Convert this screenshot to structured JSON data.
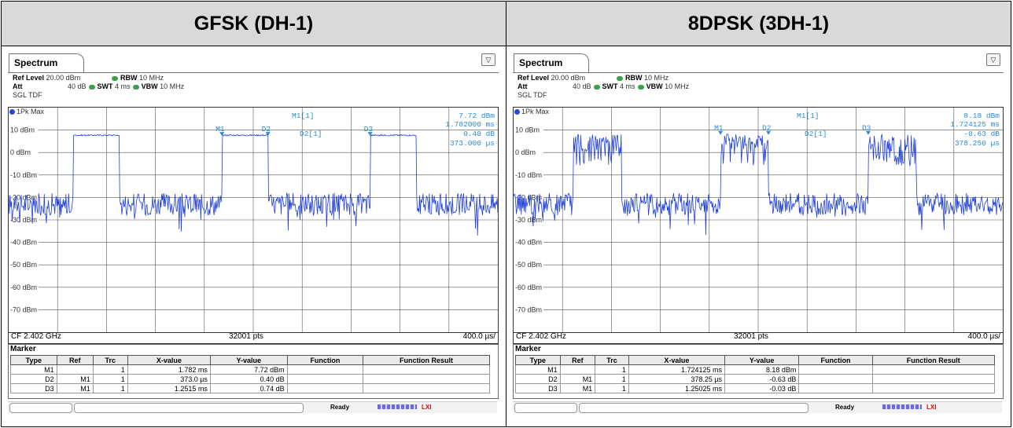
{
  "panels": [
    {
      "id": "gfsk",
      "title": "GFSK (DH-1)",
      "tab_label": "Spectrum",
      "ref_level_label": "Ref Level",
      "ref_level_value": "20.00 dBm",
      "att_label": "Att",
      "att_value": "40 dB",
      "swt_label": "SWT",
      "swt_value": "4 ms",
      "rbw_label": "RBW",
      "rbw_value": "10 MHz",
      "vbw_label": "VBW",
      "vbw_value": "10 MHz",
      "mode": "SGL TDF",
      "trace_label": "1Pk Max",
      "y_ticks": [
        "10 dBm",
        "0 dBm",
        "-10 dBm",
        "-20 dBm",
        "-30 dBm",
        "-40 dBm",
        "-50 dBm",
        "-60 dBm",
        "-70 dBm"
      ],
      "marker_readout": {
        "m1_name": "M1[1]",
        "m1_level": "7.72 dBm",
        "m1_time": "1.782000 ms",
        "d2_name": "D2[1]",
        "d2_level": "0.40 dB",
        "d2_time": "373.000 µs"
      },
      "trace_markers": [
        "M1",
        "D2",
        "D3"
      ],
      "bursts": [
        [
          0.132,
          0.226
        ],
        [
          0.436,
          0.53
        ],
        [
          0.739,
          0.833
        ]
      ],
      "burst_level": 7.7,
      "noise_level": -23,
      "modulation": "gfsk",
      "cf": "CF 2.402 GHz",
      "pts": "32001 pts",
      "span": "400.0 µs/",
      "marker_table": {
        "title": "Marker",
        "headers": [
          "Type",
          "Ref",
          "Trc",
          "X-value",
          "Y-value",
          "Function",
          "Function Result"
        ],
        "rows": [
          [
            "M1",
            "",
            "1",
            "1.782 ms",
            "7.72 dBm",
            "",
            ""
          ],
          [
            "D2",
            "M1",
            "1",
            "373.0 µs",
            "0.40 dB",
            "",
            ""
          ],
          [
            "D3",
            "M1",
            "1",
            "1.2515 ms",
            "0.74 dB",
            "",
            ""
          ]
        ]
      },
      "status": "Ready"
    },
    {
      "id": "8dpsk",
      "title": "8DPSK (3DH-1)",
      "tab_label": "Spectrum",
      "ref_level_label": "Ref Level",
      "ref_level_value": "20.00 dBm",
      "att_label": "Att",
      "att_value": "40 dB",
      "swt_label": "SWT",
      "swt_value": "4 ms",
      "rbw_label": "RBW",
      "rbw_value": "10 MHz",
      "vbw_label": "VBW",
      "vbw_value": "10 MHz",
      "mode": "SGL TDF",
      "trace_label": "1Pk Max",
      "y_ticks": [
        "10 dBm",
        "0 dBm",
        "-10 dBm",
        "-20 dBm",
        "-30 dBm",
        "-40 dBm",
        "-50 dBm",
        "-60 dBm",
        "-70 dBm"
      ],
      "marker_readout": {
        "m1_name": "M1[1]",
        "m1_level": "8.18 dBm",
        "m1_time": "1.724125 ms",
        "d2_name": "D2[1]",
        "d2_level": "-0.63 dB",
        "d2_time": "378.250 µs"
      },
      "trace_markers": [
        "M1",
        "D2",
        "D3"
      ],
      "bursts": [
        [
          0.122,
          0.22
        ],
        [
          0.423,
          0.521
        ],
        [
          0.725,
          0.823
        ]
      ],
      "burst_level": 8.2,
      "noise_level": -23,
      "modulation": "8dpsk",
      "cf": "CF 2.402 GHz",
      "pts": "32001 pts",
      "span": "400.0 µs/",
      "marker_table": {
        "title": "Marker",
        "headers": [
          "Type",
          "Ref",
          "Trc",
          "X-value",
          "Y-value",
          "Function",
          "Function Result"
        ],
        "rows": [
          [
            "M1",
            "",
            "1",
            "1.724125 ms",
            "8.18 dBm",
            "",
            ""
          ],
          [
            "D2",
            "M1",
            "1",
            "378.25 µs",
            "-0.63 dB",
            "",
            ""
          ],
          [
            "D3",
            "M1",
            "1",
            "1.25025 ms",
            "-0.03 dB",
            "",
            ""
          ]
        ]
      },
      "status": "Ready"
    }
  ],
  "colors": {
    "trace": "#1f3fd8",
    "marker_text": "#2a8ad8",
    "grid": "#555555",
    "trace_dot": "#2a48d0",
    "status_green": "#3aa04a"
  }
}
